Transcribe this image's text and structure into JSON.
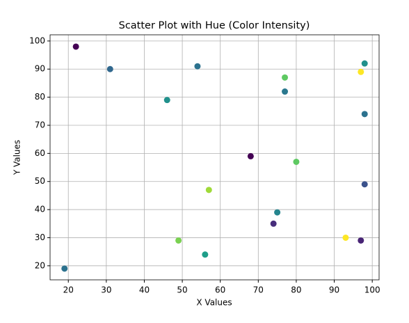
{
  "chart_data": {
    "type": "scatter",
    "title": "Scatter Plot with Hue (Color Intensity)",
    "x_label": "X Values",
    "y_label": "Y Values",
    "series": [
      {
        "x": [
          22,
          31,
          54,
          46,
          77,
          77,
          98,
          97,
          98,
          68,
          80,
          98,
          57,
          75,
          74,
          49,
          93,
          97,
          56,
          19
        ],
        "values": [
          98,
          90,
          91,
          79,
          87,
          82,
          92,
          89,
          74,
          59,
          57,
          49,
          47,
          39,
          35,
          29,
          30,
          29,
          24,
          19
        ],
        "colors": [
          "#440154",
          "#31688e",
          "#2c728e",
          "#21918c",
          "#5ec962",
          "#2a788e",
          "#21918c",
          "#fde725",
          "#2c728e",
          "#440154",
          "#5ec962",
          "#3b528b",
          "#a0da39",
          "#25858e",
          "#472d7b",
          "#7ad151",
          "#fde725",
          "#482475",
          "#1f9e89",
          "#2c728e"
        ]
      }
    ],
    "xlim": [
      15.2,
      101.8
    ],
    "ylim": [
      15,
      102.2
    ],
    "xticks": [
      20,
      30,
      40,
      50,
      60,
      70,
      80,
      90,
      100
    ],
    "yticks": [
      20,
      30,
      40,
      50,
      60,
      70,
      80,
      90,
      100
    ],
    "grid": true
  }
}
